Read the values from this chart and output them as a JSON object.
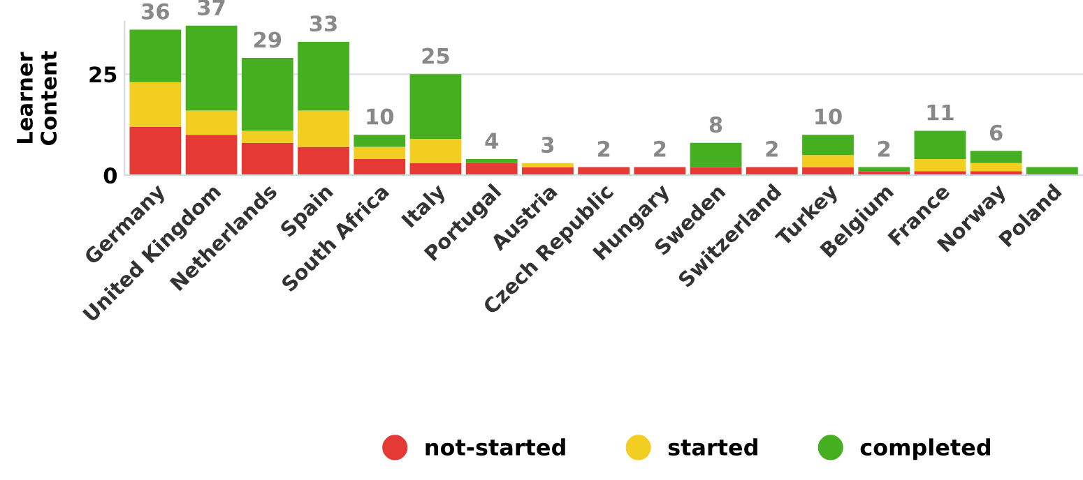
{
  "chart_data": {
    "type": "bar",
    "stacked": true,
    "ylabel": "Learner\nContent",
    "categories": [
      "Germany",
      "United Kingdom",
      "Netherlands",
      "Spain",
      "South Africa",
      "Italy",
      "Portugal",
      "Austria",
      "Czech Republic",
      "Hungary",
      "Sweden",
      "Switzerland",
      "Turkey",
      "Belgium",
      "France",
      "Norway",
      "Poland"
    ],
    "series": [
      {
        "name": "not-started",
        "color": "#e53935",
        "values": [
          12,
          10,
          8,
          7,
          4,
          3,
          3,
          2,
          2,
          2,
          2,
          2,
          2,
          1,
          1,
          1,
          0
        ]
      },
      {
        "name": "started",
        "color": "#f2cd22",
        "values": [
          11,
          6,
          3,
          9,
          3,
          6,
          0,
          1,
          0,
          0,
          0,
          0,
          3,
          0,
          3,
          2,
          0
        ]
      },
      {
        "name": "completed",
        "color": "#46ae21",
        "values": [
          13,
          21,
          18,
          17,
          3,
          16,
          1,
          0,
          0,
          0,
          6,
          0,
          5,
          1,
          7,
          3,
          2
        ]
      }
    ],
    "totals": [
      "36",
      "37",
      "29",
      "33",
      "10",
      "25",
      "4",
      "3",
      "2",
      "2",
      "8",
      "2",
      "10",
      "2",
      "11",
      "6",
      null
    ],
    "ylim": [
      0,
      38
    ],
    "yticks": [
      0,
      25
    ],
    "grid": "y",
    "legend": "bottom",
    "marker": "circle"
  }
}
